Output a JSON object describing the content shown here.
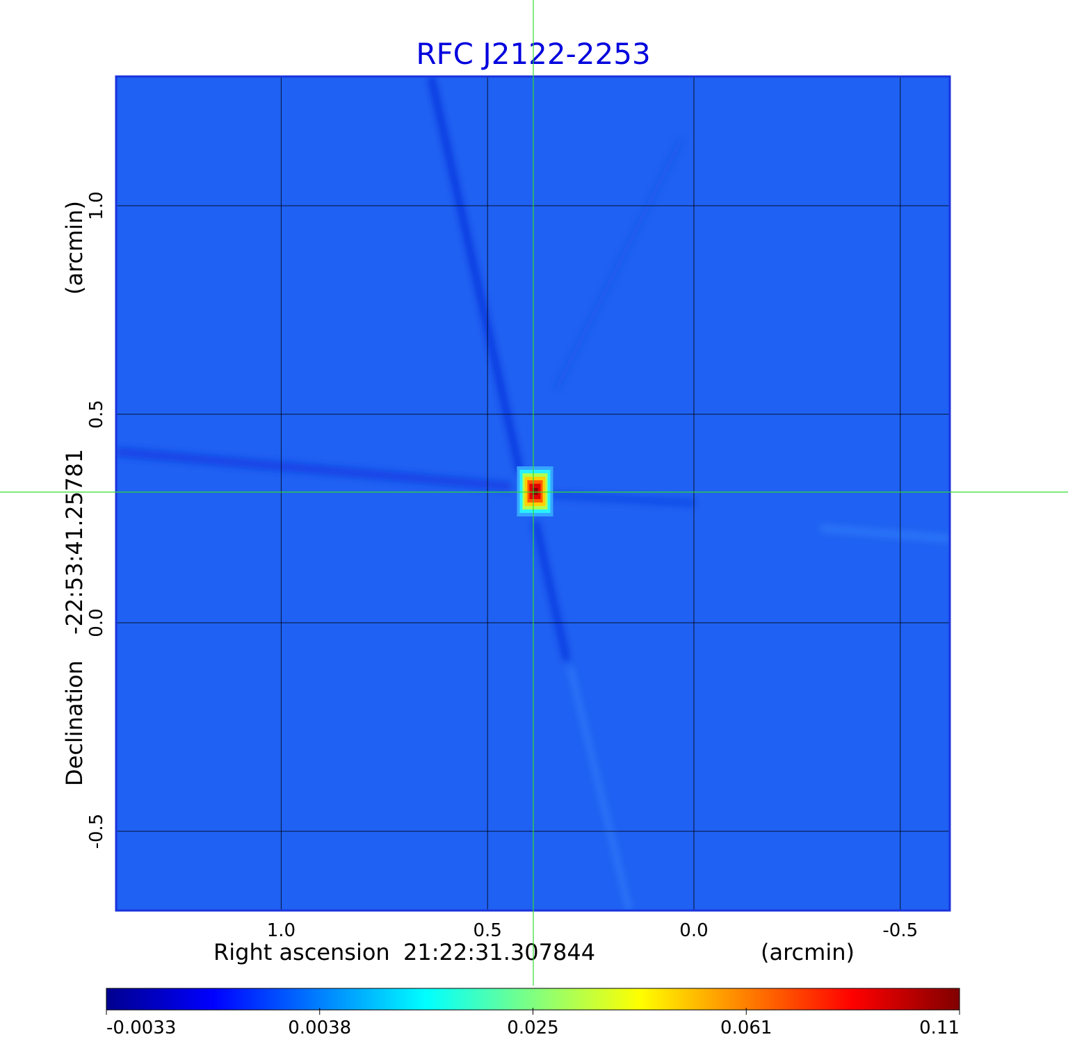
{
  "chart_data": {
    "type": "heatmap",
    "title": "RFC J2122-2253",
    "title_color": "#0000dd",
    "xlabel_parts": [
      "Right ascension",
      "21:22:31.307844",
      "(arcmin)"
    ],
    "ylabel_parts": [
      "Declination",
      "-22:53:41.25781",
      "(arcmin)"
    ],
    "x_ticks": [
      {
        "value": 1.0,
        "label": "1.0"
      },
      {
        "value": 0.5,
        "label": "0.5"
      },
      {
        "value": 0.0,
        "label": "0.0"
      },
      {
        "value": -0.5,
        "label": "-0.5"
      }
    ],
    "y_ticks": [
      {
        "value": 1.0,
        "label": "1.0"
      },
      {
        "value": 0.5,
        "label": "0.5"
      },
      {
        "value": 0.0,
        "label": "0.0"
      },
      {
        "value": -0.5,
        "label": "-0.5"
      }
    ],
    "xlim": [
      1.4,
      -0.62
    ],
    "ylim": [
      -0.69,
      1.31
    ],
    "source_position": {
      "x": 0.385,
      "y": 0.315
    },
    "peak_value": 0.11,
    "background_value": 0.0005,
    "colorbar": {
      "colormap": "jet",
      "ticks": [
        "-0.0033",
        "0.0038",
        "0.025",
        "0.061",
        "0.11"
      ]
    },
    "grid": true,
    "crosshair_color": "#33dd33"
  }
}
